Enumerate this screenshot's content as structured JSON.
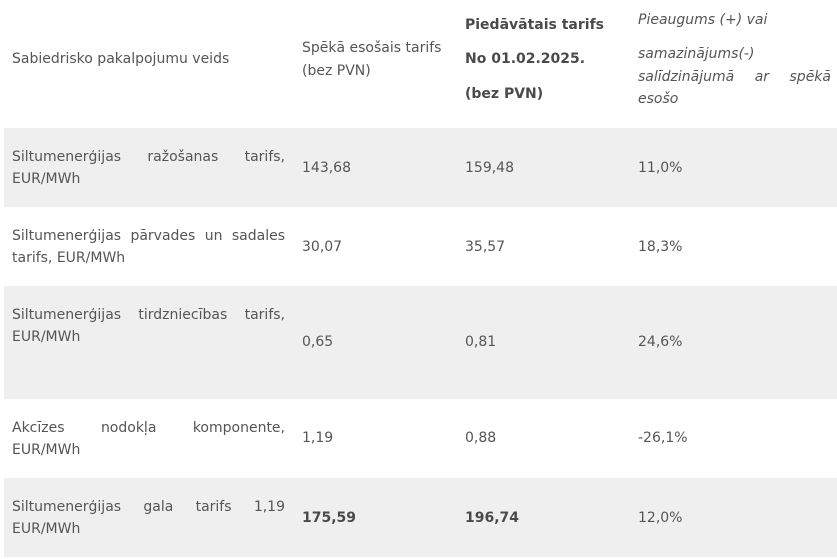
{
  "header": {
    "col1": "Sabiedrisko pakalpojumu veids",
    "col2_line1": "Spēkā esošais tarifs",
    "col2_line2": "(bez PVN)",
    "col3_line1": "Piedāvātais tarifs",
    "col3_line2": "No 01.02.2025.",
    "col3_line3": "(bez PVN)",
    "col4_line1": "Pieaugums (+) vai",
    "col4_line2": "samazinājums(-)",
    "col4_line3": "salīdzinājumā ar spēkā esošo"
  },
  "rows": [
    {
      "name": "Siltumenerģijas ražošanas tarifs, EUR/MWh",
      "current": "143,68",
      "proposed": "159,48",
      "change": "11,0%"
    },
    {
      "name": "Siltumenerģijas pārvades un sadales tarifs, EUR/MWh",
      "current": "30,07",
      "proposed": "35,57",
      "change": "18,3%"
    },
    {
      "name": "Siltumenerģijas tirdzniecības tarifs, EUR/MWh",
      "current": "0,65",
      "proposed": "0,81",
      "change": "24,6%"
    },
    {
      "name": "Akcīzes nodokļa komponente, EUR/MWh",
      "current": "1,19",
      "proposed": "0,88",
      "change": "-26,1%"
    },
    {
      "name": "Siltumenerģijas gala tarifs 1,19 EUR/MWh",
      "current": "175,59",
      "proposed": "196,74",
      "change": "12,0%"
    }
  ]
}
